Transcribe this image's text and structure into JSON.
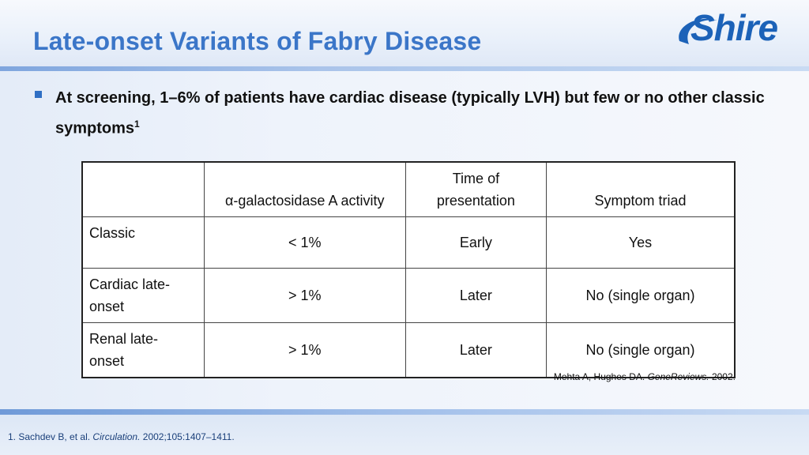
{
  "title": "Late-onset Variants of Fabry Disease",
  "logo": {
    "text": "Shire",
    "color": "#1c62b8"
  },
  "bullet": {
    "text": "At screening, 1–6% of patients have cardiac disease (typically LVH) but few or no other classic symptoms",
    "superscript": "1"
  },
  "table": {
    "headers": [
      "",
      "α-galactosidase A activity",
      "Time of presentation",
      "Symptom triad"
    ],
    "rows": [
      {
        "label": "Classic",
        "activity": "< 1%",
        "time": "Early",
        "triad": "Yes"
      },
      {
        "label": "Cardiac late-onset",
        "activity": "> 1%",
        "time": "Later",
        "triad": "No (single organ)"
      },
      {
        "label": "Renal late-onset",
        "activity": "> 1%",
        "time": "Later",
        "triad": "No (single organ)"
      }
    ]
  },
  "source": {
    "authors": "Mehta A, Hughes DA. ",
    "journal": "GeneReviews.",
    "year": " 2002."
  },
  "footnote": {
    "prefix": "1. Sachdev B, et al. ",
    "journal": "Circulation.",
    "rest": " 2002;105:1407–1411."
  },
  "colors": {
    "title": "#3b76c8",
    "accent": "#2f6fc4",
    "footnote": "#1a3f7a"
  }
}
